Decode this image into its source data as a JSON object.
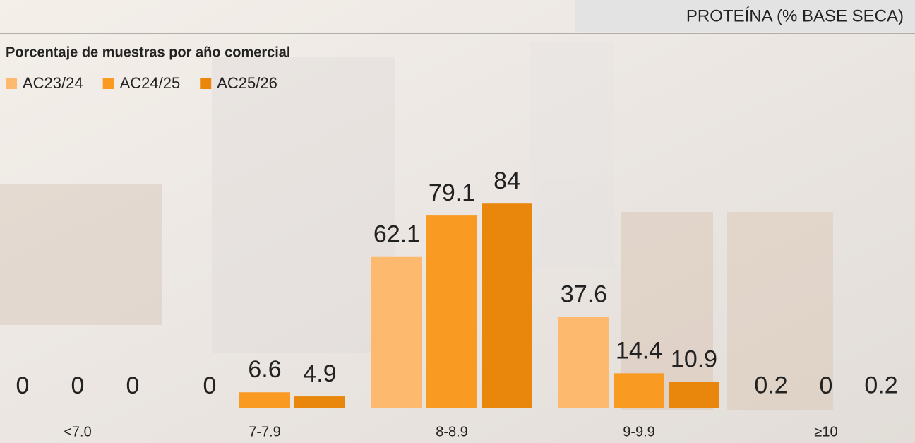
{
  "chart_data": {
    "type": "bar",
    "header": "PROTEÍNA (% BASE SECA)",
    "title": "Porcentaje de muestras por año comercial",
    "categories": [
      "<7.0",
      "7-7.9",
      "8-8.9",
      "9-9.9",
      "≥10"
    ],
    "series": [
      {
        "name": "AC23/24",
        "color": "#fdba6f",
        "values": [
          0,
          0,
          62.1,
          37.6,
          0.2
        ]
      },
      {
        "name": "AC24/25",
        "color": "#f99b23",
        "values": [
          0,
          6.6,
          79.1,
          14.4,
          0
        ]
      },
      {
        "name": "AC25/26",
        "color": "#e8870b",
        "values": [
          0,
          4.9,
          84,
          10.9,
          0.2
        ]
      }
    ]
  }
}
